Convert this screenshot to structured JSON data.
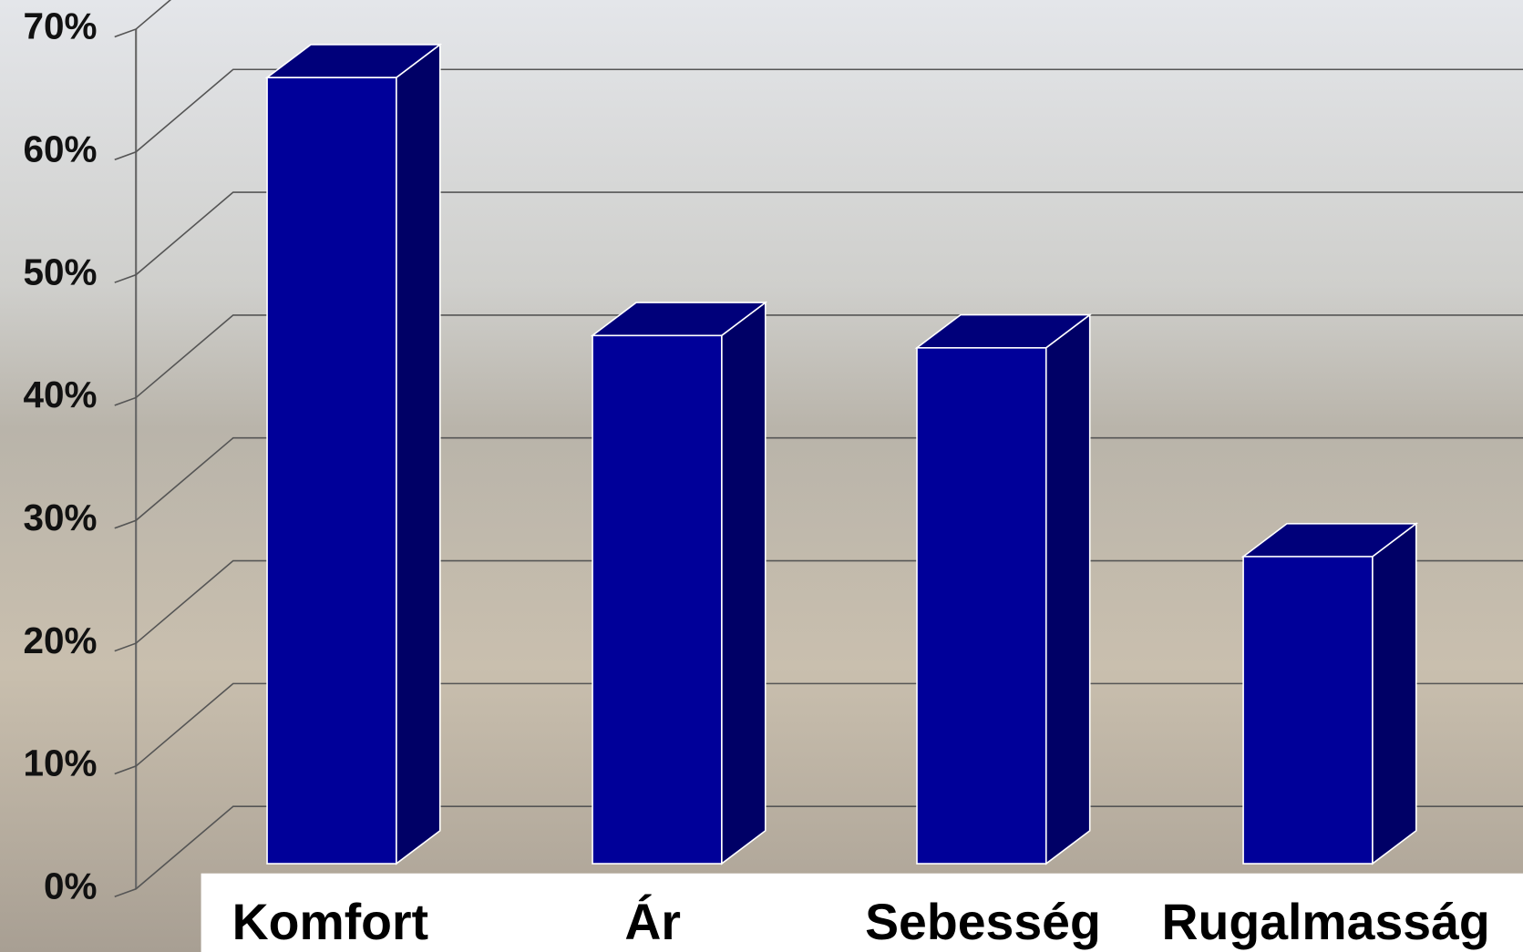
{
  "chart_data": {
    "type": "bar3d",
    "categories": [
      "Komfort",
      "Ár",
      "Sebesség",
      "Rugalmasság"
    ],
    "values": [
      64,
      43,
      42,
      25
    ],
    "color": "#000099",
    "ylim": [
      0,
      70
    ],
    "yticks": [
      {
        "value": 0,
        "label": "0%"
      },
      {
        "value": 10,
        "label": "10%"
      },
      {
        "value": 20,
        "label": "20%"
      },
      {
        "value": 30,
        "label": "30%"
      },
      {
        "value": 40,
        "label": "40%"
      },
      {
        "value": 50,
        "label": "50%"
      },
      {
        "value": 60,
        "label": "60%"
      },
      {
        "value": 70,
        "label": "70%"
      }
    ],
    "grid": true
  }
}
